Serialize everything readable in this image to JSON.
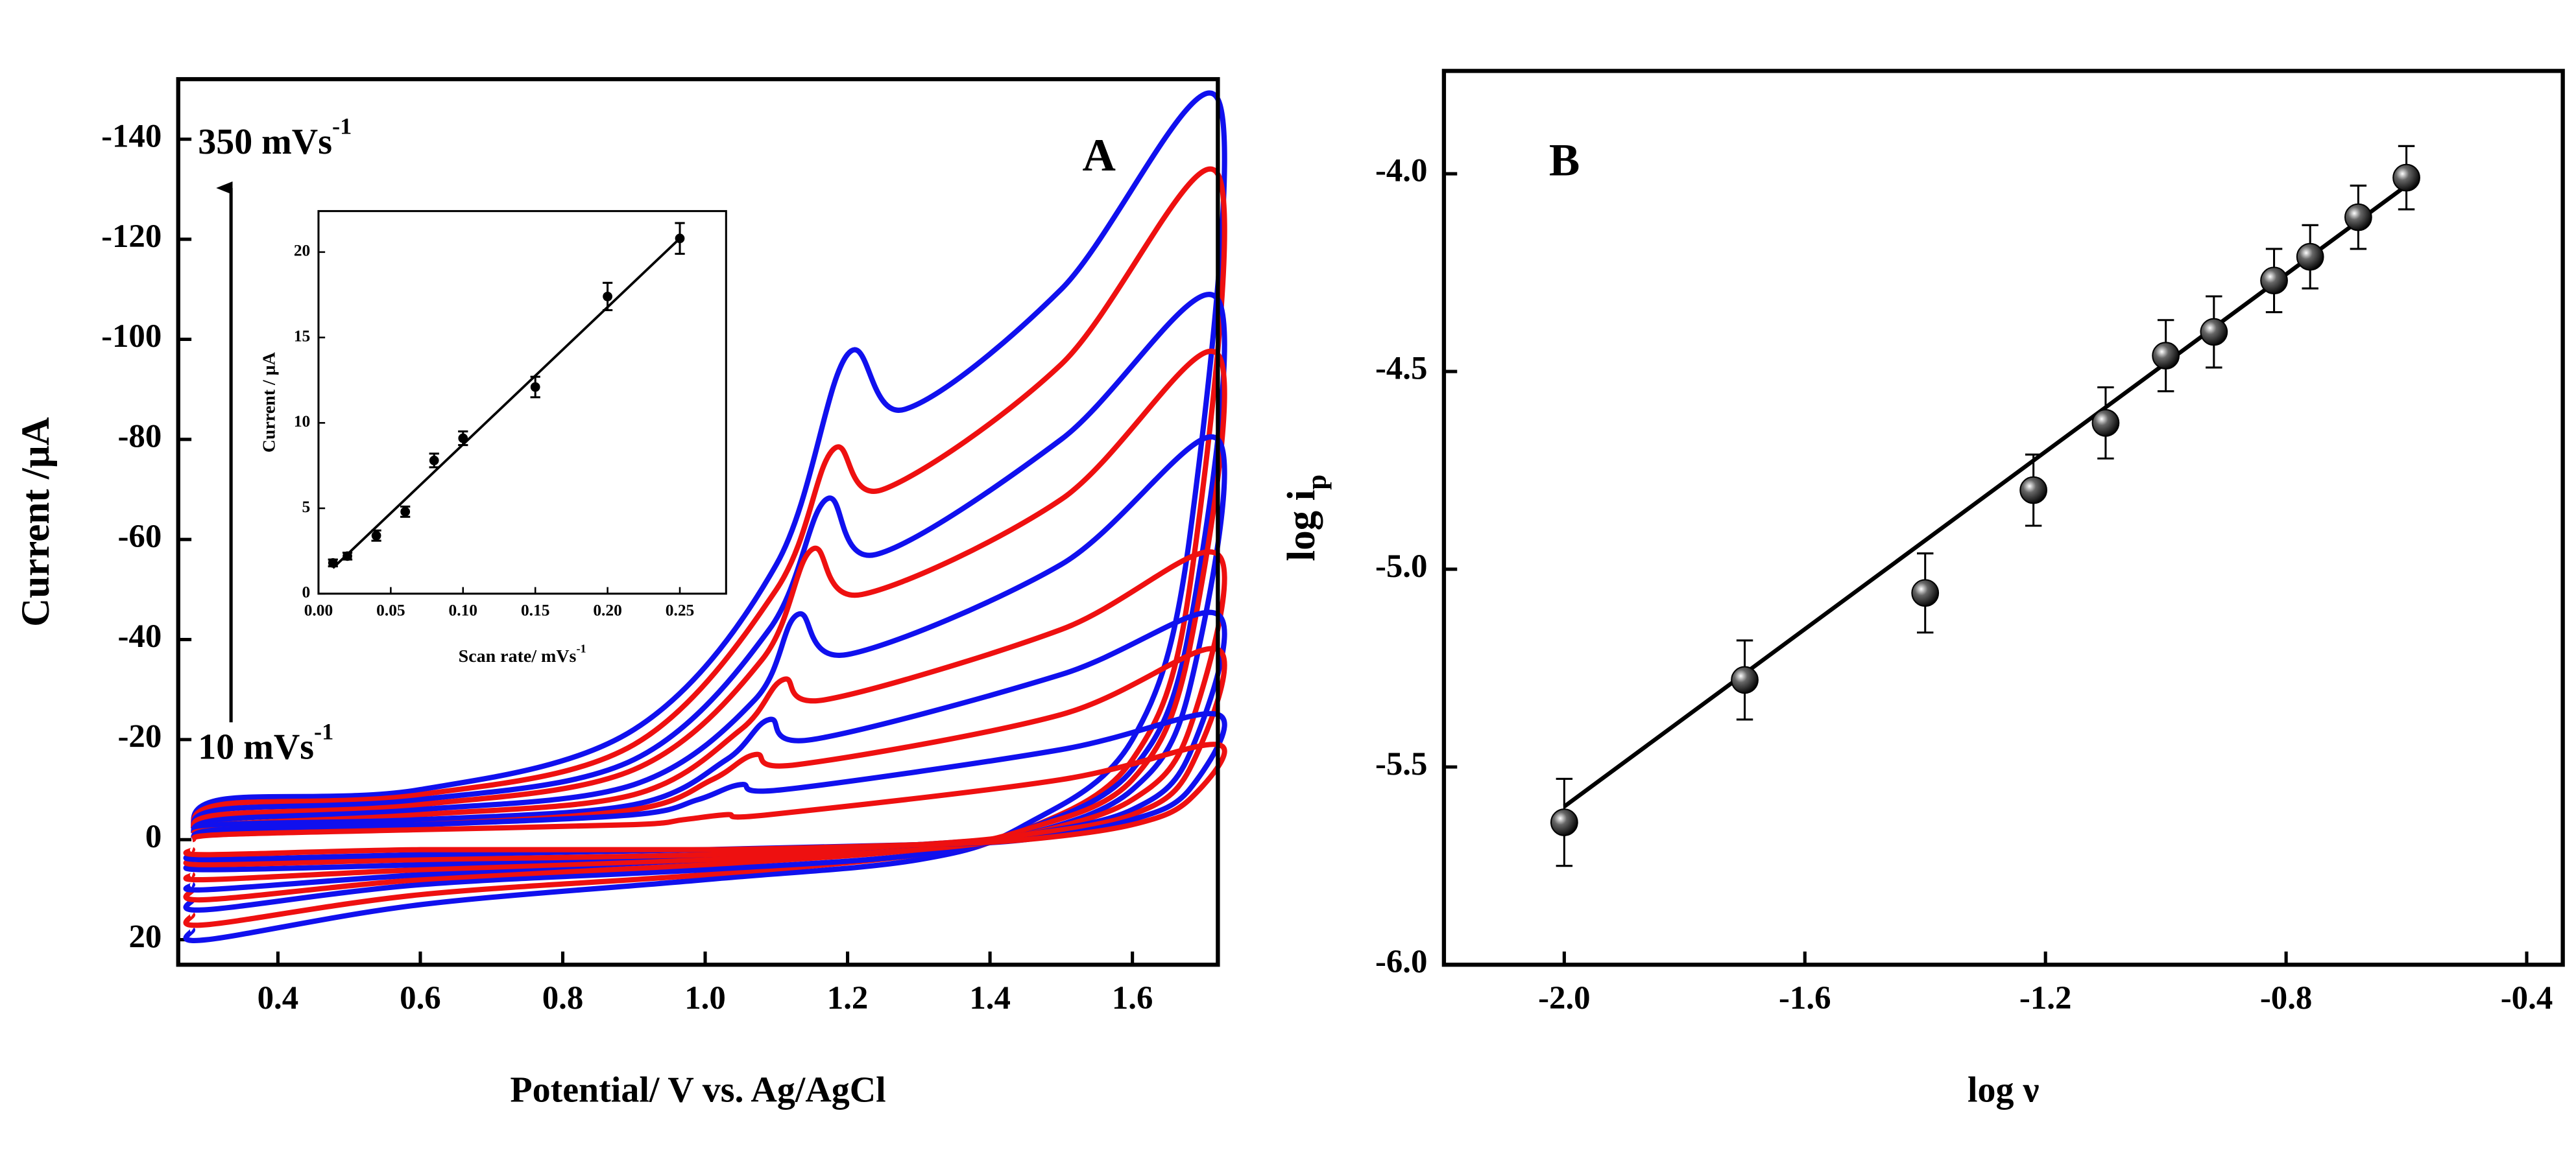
{
  "chart_data": [
    {
      "type": "line",
      "panel_label": "A",
      "xlabel": "Potential/ V vs. Ag/AgCl",
      "ylabel": "Current /μA",
      "xlim": [
        0.26,
        1.72
      ],
      "ylim": [
        25,
        -152
      ],
      "xticks": [
        0.4,
        0.6,
        0.8,
        {
          "value": 1,
          "label": "1.0"
        },
        1.2,
        1.4,
        1.6
      ],
      "yticks": [
        -140,
        -120,
        -100,
        -80,
        -60,
        -40,
        -20,
        0,
        20
      ],
      "annotations": [
        {
          "text": "350 mVs",
          "sup": "-1"
        },
        {
          "text": "10 mVs",
          "sup": "-1"
        }
      ],
      "series": [
        {
          "color": "#1010ee",
          "x": [
            0.28,
            0.32,
            0.6,
            0.9,
            1.1,
            1.2,
            1.28,
            1.5,
            1.72,
            1.68,
            1.6,
            1.45,
            1.3,
            1,
            0.6,
            0.3,
            0.28
          ],
          "values": [
            -2,
            -8,
            -10,
            -22,
            -55,
            -97,
            -86,
            -110,
            -148,
            -60,
            -20,
            -3,
            4,
            8,
            13,
            20,
            18
          ]
        },
        {
          "color": "#ee1010",
          "x": [
            0.28,
            0.32,
            0.6,
            0.9,
            1.1,
            1.18,
            1.25,
            1.5,
            1.72,
            1.68,
            1.6,
            1.45,
            1.3,
            1,
            0.6,
            0.3,
            0.28
          ],
          "values": [
            -2,
            -7,
            -9,
            -19,
            -50,
            -78,
            -70,
            -95,
            -133,
            -50,
            -16,
            -2,
            3,
            7,
            11,
            17,
            15
          ]
        },
        {
          "color": "#1010ee",
          "x": [
            0.28,
            0.32,
            0.6,
            0.9,
            1.09,
            1.17,
            1.24,
            1.5,
            1.72,
            1.68,
            1.6,
            1.45,
            1.3,
            1,
            0.6,
            0.3,
            0.28
          ],
          "values": [
            -2,
            -6,
            -8,
            -16,
            -42,
            -68,
            -57,
            -80,
            -108,
            -42,
            -14,
            -2,
            3,
            6,
            9,
            14,
            12
          ]
        },
        {
          "color": "#ee1010",
          "x": [
            0.28,
            0.32,
            0.6,
            0.9,
            1.08,
            1.15,
            1.22,
            1.5,
            1.72,
            1.68,
            1.6,
            1.45,
            1.3,
            1,
            0.6,
            0.3,
            0.28
          ],
          "values": [
            -2,
            -5,
            -7,
            -14,
            -36,
            -58,
            -49,
            -68,
            -97,
            -38,
            -12,
            -2,
            2,
            5,
            8,
            12,
            10
          ]
        },
        {
          "color": "#1010ee",
          "x": [
            0.28,
            0.32,
            0.6,
            0.9,
            1.07,
            1.13,
            1.2,
            1.5,
            1.72,
            1.68,
            1.6,
            1.45,
            1.3,
            1,
            0.6,
            0.3,
            0.28
          ],
          "values": [
            -1,
            -4,
            -6,
            -11,
            -28,
            -45,
            -37,
            -55,
            -80,
            -30,
            -10,
            -1,
            2,
            4,
            7,
            10,
            9
          ]
        },
        {
          "color": "#ee1010",
          "x": [
            0.28,
            0.32,
            0.6,
            0.9,
            1.05,
            1.11,
            1.17,
            1.5,
            1.72,
            1.68,
            1.6,
            1.45,
            1.3,
            1,
            0.6,
            0.3,
            0.28
          ],
          "values": [
            -1,
            -3,
            -5,
            -9,
            -22,
            -32,
            -28,
            -42,
            -57,
            -22,
            -8,
            -1,
            2,
            4,
            6,
            8,
            7
          ]
        },
        {
          "color": "#1010ee",
          "x": [
            0.28,
            0.32,
            0.6,
            0.9,
            1.03,
            1.09,
            1.15,
            1.5,
            1.72,
            1.68,
            1.6,
            1.45,
            1.3,
            1,
            0.6,
            0.3,
            0.28
          ],
          "values": [
            -1,
            -3,
            -4,
            -7,
            -16,
            -24,
            -20,
            -33,
            -45,
            -17,
            -6,
            -1,
            1,
            3,
            5,
            6,
            5
          ]
        },
        {
          "color": "#ee1010",
          "x": [
            0.28,
            0.32,
            0.6,
            0.9,
            1.01,
            1.07,
            1.13,
            1.5,
            1.72,
            1.68,
            1.6,
            1.45,
            1.3,
            1,
            0.6,
            0.3,
            0.28
          ],
          "values": [
            -1,
            -2,
            -3,
            -6,
            -12,
            -17,
            -15,
            -25,
            -38,
            -14,
            -5,
            -1,
            1,
            3,
            4,
            5,
            4
          ]
        },
        {
          "color": "#1010ee",
          "x": [
            0.28,
            0.32,
            0.6,
            0.9,
            0.99,
            1.05,
            1.11,
            1.5,
            1.72,
            1.68,
            1.6,
            1.45,
            1.3,
            1,
            0.6,
            0.3,
            0.28
          ],
          "values": [
            0,
            -2,
            -3,
            -5,
            -8,
            -11,
            -10,
            -18,
            -25,
            -10,
            -4,
            0,
            1,
            2,
            3,
            4,
            3
          ]
        },
        {
          "color": "#ee1010",
          "x": [
            0.28,
            0.32,
            0.6,
            0.9,
            0.97,
            1.03,
            1.09,
            1.5,
            1.72,
            1.68,
            1.6,
            1.45,
            1.3,
            1,
            0.6,
            0.3,
            0.28
          ],
          "values": [
            0,
            -1,
            -2,
            -3,
            -4,
            -5,
            -5,
            -12,
            -19,
            -8,
            -3,
            0,
            1,
            2,
            2,
            3,
            2
          ]
        }
      ]
    },
    {
      "type": "scatter",
      "xlabel": {
        "text": "Scan rate/ mVs",
        "sup": "-1"
      },
      "ylabel": "Current / μA",
      "xlim": [
        0,
        0.282
      ],
      "ylim": [
        0,
        22.4
      ],
      "xticks": [
        {
          "value": 0,
          "label": "0.00"
        },
        0.05,
        {
          "value": 0.1,
          "label": "0.10"
        },
        0.15,
        {
          "value": 0.2,
          "label": "0.20"
        },
        0.25
      ],
      "yticks": [
        0,
        5,
        10,
        15,
        20
      ],
      "x": [
        0.01,
        0.02,
        0.04,
        0.06,
        0.08,
        0.1,
        0.15,
        0.2,
        0.25
      ],
      "values": [
        1.8,
        2.2,
        3.4,
        4.8,
        7.8,
        9.1,
        12.1,
        17.4,
        20.8
      ],
      "errors": [
        0.2,
        0.2,
        0.3,
        0.3,
        0.4,
        0.4,
        0.6,
        0.8,
        0.9
      ],
      "fit": {
        "x": [
          0.01,
          0.25
        ],
        "values": [
          1.5,
          20.8
        ]
      },
      "color": "#000000"
    },
    {
      "type": "scatter",
      "panel_label": "B",
      "xlabel": "log ν",
      "ylabel": {
        "text": "log i",
        "sub": "p"
      },
      "xlim": [
        -2.2,
        -0.34
      ],
      "ylim": [
        -6.0,
        -3.74
      ],
      "xticks": [
        {
          "value": -2,
          "label": "-2.0"
        },
        -1.6,
        -1.2,
        -0.8,
        -0.4
      ],
      "yticks": [
        {
          "value": -6,
          "label": "-6.0"
        },
        -5.5,
        {
          "value": -5,
          "label": "-5.0"
        },
        -4.5,
        {
          "value": -4,
          "label": "-4.0"
        }
      ],
      "x": [
        -2.0,
        -1.7,
        -1.4,
        -1.22,
        -1.1,
        -1.0,
        -0.92,
        -0.82,
        -0.76,
        -0.68,
        -0.6
      ],
      "values": [
        -5.64,
        -5.28,
        -5.06,
        -4.8,
        -4.63,
        -4.46,
        -4.4,
        -4.27,
        -4.21,
        -4.11,
        -4.01
      ],
      "errors": [
        0.11,
        0.1,
        0.1,
        0.09,
        0.09,
        0.09,
        0.09,
        0.08,
        0.08,
        0.08,
        0.08
      ],
      "fit": {
        "x": [
          -2.0,
          -0.6
        ],
        "values": [
          -5.6,
          -4.03
        ]
      },
      "color": "#000000"
    }
  ]
}
